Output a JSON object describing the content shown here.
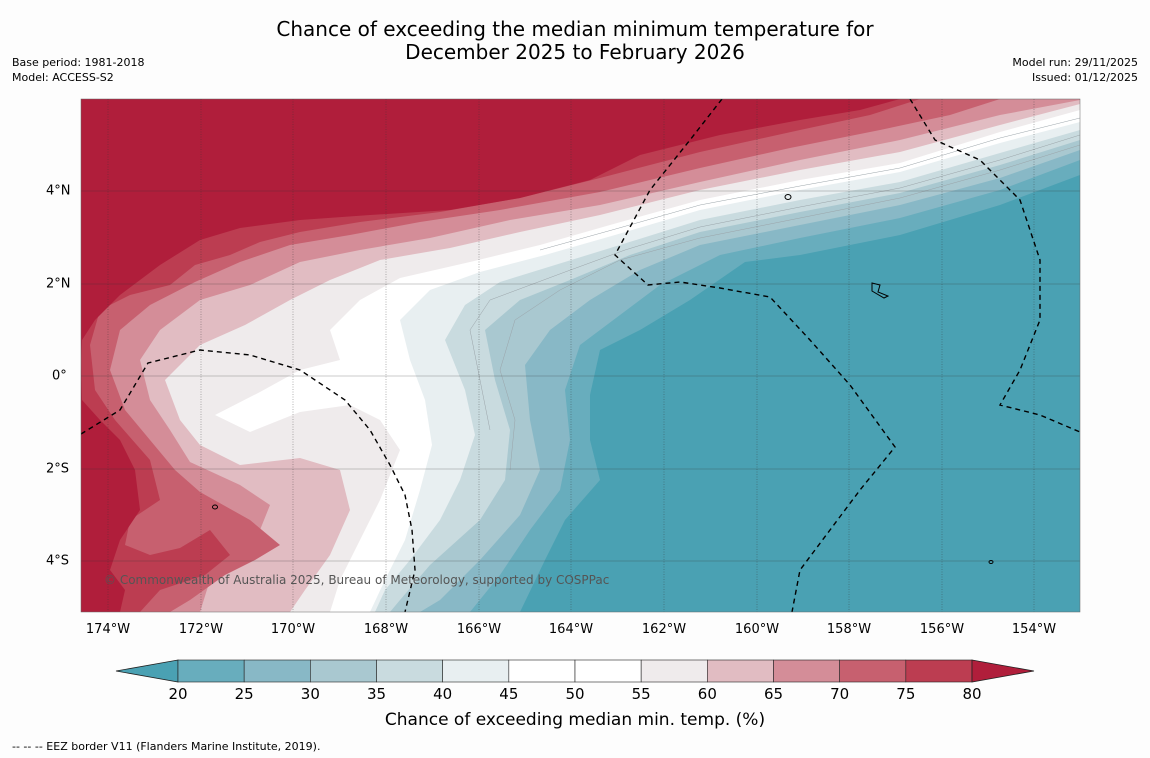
{
  "title": {
    "line1": "Chance of exceeding the median minimum temperature for",
    "line2": "December 2025 to February 2026"
  },
  "meta": {
    "base_period": "Base period: 1981-2018",
    "model": "Model: ACCESS-S2",
    "model_run": "Model run: 29/11/2025",
    "issued": "Issued: 01/12/2025"
  },
  "map": {
    "longitudes": [
      "174°W",
      "172°W",
      "170°W",
      "168°W",
      "166°W",
      "164°W",
      "162°W",
      "160°W",
      "158°W",
      "156°W",
      "154°W"
    ],
    "latitudes": [
      "4°N",
      "2°N",
      "0°",
      "2°S",
      "4°S"
    ],
    "credit": "© Commonwealth of Australia 2025, Bureau of Meteorology, supported by COSPPac",
    "colors": {
      "below20": "#4aa1b3",
      "c20_25": "#68adbd",
      "c25_30": "#88b8c6",
      "c30_35": "#a9c8d0",
      "c35_40": "#c9dbdf",
      "c40_45": "#e8eff1",
      "c45_55": "#ffffff",
      "c55_60": "#efebec",
      "c60_65": "#e1bcc2",
      "c65_70": "#d48d98",
      "c70_75": "#c7606f",
      "c75_80": "#bc3d51",
      "above80": "#b01e3b"
    }
  },
  "colorbar": {
    "ticks": [
      "20",
      "25",
      "30",
      "35",
      "40",
      "45",
      "50",
      "55",
      "60",
      "65",
      "70",
      "75",
      "80"
    ],
    "label": "Chance of exceeding median min. temp. (%)",
    "colors": [
      "#68adbd",
      "#88b8c6",
      "#a9c8d0",
      "#c9dbdf",
      "#e8eff1",
      "#ffffff",
      "#ffffff",
      "#efebec",
      "#e1bcc2",
      "#d48d98",
      "#c7606f",
      "#bc3d51"
    ],
    "low_color": "#4aa1b3",
    "high_color": "#b01e3b"
  },
  "footnote": "--  --  -- EEZ border V11 (Flanders Marine Institute, 2019)."
}
